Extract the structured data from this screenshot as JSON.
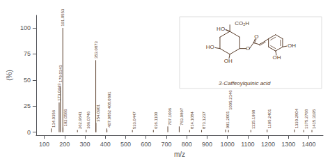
{
  "chart_data": {
    "type": "stem",
    "xlabel": "m/z",
    "ylabel": "(%)",
    "x": [
      134.0356,
      173.0443,
      179.0343,
      191.0553,
      192.0586,
      262.9641,
      306.0746,
      353.0873,
      354.0901,
      407.0852,
      408.0891,
      533.0447,
      636.11,
      707.1006,
      763.0897,
      814.1084,
      873.1237,
      991.2001,
      1005.2146,
      1115.1968,
      1195.2401,
      1330.2804,
      1375.2768,
      1415.3195
    ],
    "values": [
      3.5,
      28.5,
      44.0,
      100.0,
      4.5,
      2.0,
      2.2,
      69.0,
      9.0,
      3.5,
      2.0,
      2.0,
      2.0,
      5.5,
      5.5,
      2.0,
      2.0,
      2.5,
      2.0,
      2.0,
      2.5,
      2.5,
      2.0,
      2.0
    ],
    "labels": [
      "134.0356",
      "173.0443",
      "179.0343",
      "191.0553",
      "192.0586",
      "262.9641",
      "306.0746",
      "353.0873",
      "354.0901",
      "407.0852",
      "408.0891",
      "533.0447",
      "636.1100",
      "707.1006",
      "763.0897",
      "814.1084",
      "873.1237",
      "991.2001",
      "1005.2146",
      "1115.1968",
      "1195.2401",
      "1330.2804",
      "1375.2768",
      "1415.3195"
    ],
    "color": "#5a3e2b",
    "xlim": [
      60,
      1470
    ],
    "ylim": [
      -3,
      112
    ],
    "xticks": [
      100,
      200,
      300,
      400,
      500,
      600,
      700,
      800,
      900,
      1000,
      1100,
      1200,
      1300,
      1400
    ],
    "yticks": [
      0,
      25,
      50,
      75,
      100
    ],
    "grid": false,
    "annotations": [
      "CO₂H",
      "HO",
      "HO",
      "OH",
      "O",
      "O",
      "OH",
      "OH",
      "3-Caffeoylquinic acid"
    ]
  }
}
